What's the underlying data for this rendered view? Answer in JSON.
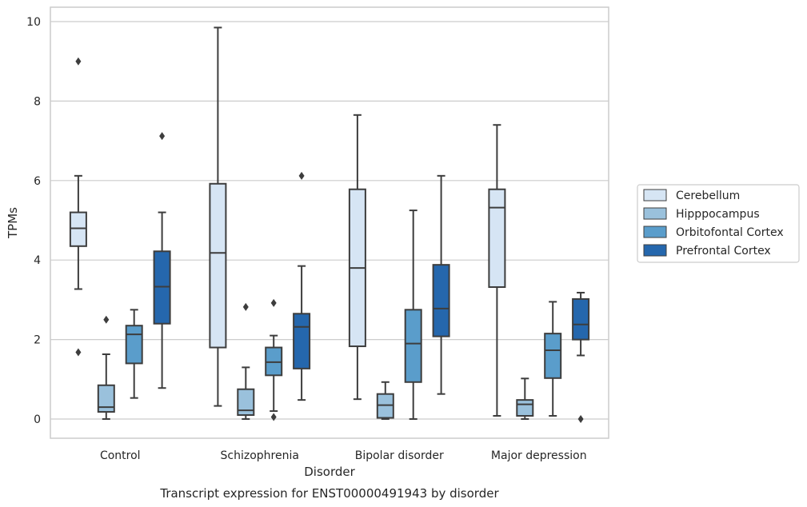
{
  "chart_data": {
    "type": "box",
    "title": "",
    "caption": "Transcript expression for ENST00000491943 by disorder",
    "xlabel": "Disorder",
    "ylabel": "TPMs",
    "ylim": [
      -0.5,
      10.35
    ],
    "yticks": [
      0,
      2,
      4,
      6,
      8,
      10
    ],
    "grid": "horizontal",
    "legend_position": "right",
    "categories": [
      "Control",
      "Schizophrenia",
      "Bipolar disorder",
      "Major depression"
    ],
    "series": [
      {
        "name": "Cerebellum",
        "color": "#d6e5f4",
        "boxes": [
          {
            "whislo": 3.27,
            "q1": 4.35,
            "med": 4.8,
            "q3": 5.2,
            "whishi": 6.12,
            "fliers": [
              1.68,
              9.0
            ]
          },
          {
            "whislo": 0.33,
            "q1": 1.8,
            "med": 4.18,
            "q3": 5.92,
            "whishi": 9.85,
            "fliers": []
          },
          {
            "whislo": 0.5,
            "q1": 1.83,
            "med": 3.8,
            "q3": 5.78,
            "whishi": 7.65,
            "fliers": []
          },
          {
            "whislo": 0.08,
            "q1": 3.32,
            "med": 5.32,
            "q3": 5.78,
            "whishi": 7.4,
            "fliers": []
          }
        ]
      },
      {
        "name": "Hipppocampus",
        "color": "#9ac1dc",
        "boxes": [
          {
            "whislo": 0.0,
            "q1": 0.18,
            "med": 0.3,
            "q3": 0.85,
            "whishi": 1.63,
            "fliers": [
              2.5
            ]
          },
          {
            "whislo": 0.0,
            "q1": 0.1,
            "med": 0.22,
            "q3": 0.75,
            "whishi": 1.3,
            "fliers": [
              2.82
            ]
          },
          {
            "whislo": 0.0,
            "q1": 0.03,
            "med": 0.35,
            "q3": 0.63,
            "whishi": 0.93,
            "fliers": []
          },
          {
            "whislo": 0.0,
            "q1": 0.08,
            "med": 0.37,
            "q3": 0.48,
            "whishi": 1.02,
            "fliers": []
          }
        ]
      },
      {
        "name": "Orbitofontal Cortex",
        "color": "#5a9dcb",
        "boxes": [
          {
            "whislo": 0.53,
            "q1": 1.4,
            "med": 2.13,
            "q3": 2.35,
            "whishi": 2.75,
            "fliers": []
          },
          {
            "whislo": 0.2,
            "q1": 1.1,
            "med": 1.43,
            "q3": 1.8,
            "whishi": 2.1,
            "fliers": [
              2.92,
              0.05
            ]
          },
          {
            "whislo": 0.0,
            "q1": 0.93,
            "med": 1.9,
            "q3": 2.75,
            "whishi": 5.25,
            "fliers": []
          },
          {
            "whislo": 0.08,
            "q1": 1.03,
            "med": 1.73,
            "q3": 2.15,
            "whishi": 2.95,
            "fliers": []
          }
        ]
      },
      {
        "name": "Prefrontal Cortex",
        "color": "#2567ad",
        "boxes": [
          {
            "whislo": 0.78,
            "q1": 2.4,
            "med": 3.33,
            "q3": 4.22,
            "whishi": 5.2,
            "fliers": [
              7.12
            ]
          },
          {
            "whislo": 0.48,
            "q1": 1.27,
            "med": 2.32,
            "q3": 2.65,
            "whishi": 3.85,
            "fliers": [
              6.12
            ]
          },
          {
            "whislo": 0.63,
            "q1": 2.08,
            "med": 2.78,
            "q3": 3.88,
            "whishi": 6.12,
            "fliers": []
          },
          {
            "whislo": 1.6,
            "q1": 2.0,
            "med": 2.38,
            "q3": 3.02,
            "whishi": 3.18,
            "fliers": [
              0.0
            ]
          }
        ]
      }
    ]
  }
}
